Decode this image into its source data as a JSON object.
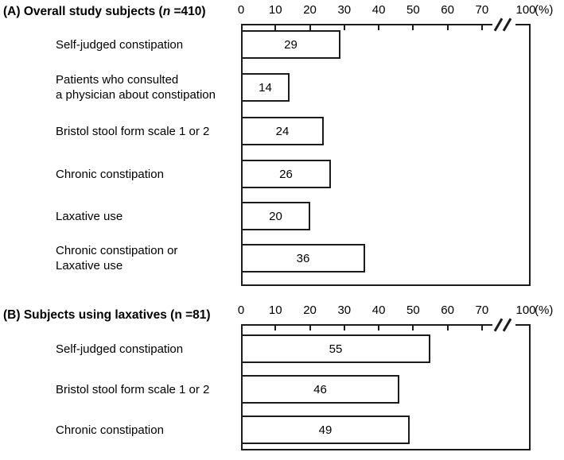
{
  "panels": [
    {
      "title_prefix": "(A) Overall study subjects (",
      "title_n": "n",
      "title_suffix": " =410)"
    },
    {
      "title_prefix": "(B) Subjects using laxatives (",
      "title_n": "n",
      "title_suffix": " =81)"
    }
  ],
  "chart_data": [
    {
      "type": "bar",
      "orientation": "horizontal",
      "title": "(A) Overall study subjects (n =410)",
      "categories": [
        "Self-judged constipation",
        "Patients who consulted\na physician about constipation",
        "Bristol stool form scale 1 or 2",
        "Chronic constipation",
        "Laxative use",
        "Chronic constipation or\nLaxative use"
      ],
      "values": [
        29,
        14,
        24,
        26,
        20,
        36
      ],
      "unit": "(%)",
      "axis_ticks": [
        0,
        10,
        20,
        30,
        40,
        50,
        60,
        70,
        100
      ],
      "axis_break_between": [
        70,
        100
      ],
      "xlim": [
        0,
        100
      ],
      "grid": false,
      "legend": false,
      "bar_fill": "#ffffff",
      "line_color": "#1c1c1c",
      "text_color": "#000000"
    },
    {
      "type": "bar",
      "orientation": "horizontal",
      "title": "(B) Subjects using laxatives (n =81)",
      "categories": [
        "Self-judged constipation",
        "Bristol stool form scale 1 or 2",
        "Chronic constipation"
      ],
      "values": [
        55,
        46,
        49
      ],
      "unit": "(%)",
      "axis_ticks": [
        0,
        10,
        20,
        30,
        40,
        50,
        60,
        70,
        100
      ],
      "axis_break_between": [
        70,
        100
      ],
      "xlim": [
        0,
        100
      ],
      "grid": false,
      "legend": false,
      "bar_fill": "#ffffff",
      "line_color": "#1c1c1c",
      "text_color": "#000000"
    }
  ]
}
